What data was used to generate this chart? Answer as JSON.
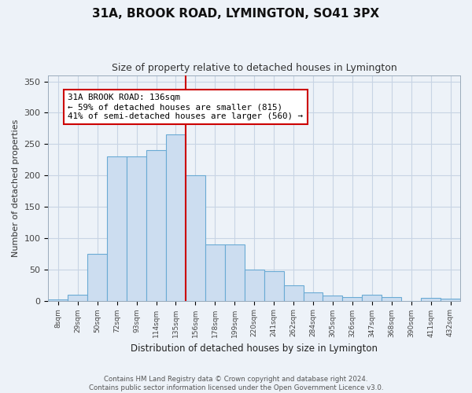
{
  "title": "31A, BROOK ROAD, LYMINGTON, SO41 3PX",
  "subtitle": "Size of property relative to detached houses in Lymington",
  "xlabel": "Distribution of detached houses by size in Lymington",
  "ylabel": "Number of detached properties",
  "bin_labels": [
    "8sqm",
    "29sqm",
    "50sqm",
    "72sqm",
    "93sqm",
    "114sqm",
    "135sqm",
    "156sqm",
    "178sqm",
    "199sqm",
    "220sqm",
    "241sqm",
    "262sqm",
    "284sqm",
    "305sqm",
    "326sqm",
    "347sqm",
    "368sqm",
    "390sqm",
    "411sqm",
    "432sqm"
  ],
  "bar_values": [
    2,
    10,
    75,
    230,
    230,
    240,
    265,
    200,
    90,
    90,
    50,
    47,
    25,
    13,
    8,
    6,
    10,
    6,
    0,
    5,
    3
  ],
  "property_line_x": 6.5,
  "annotation_text": "31A BROOK ROAD: 136sqm\n← 59% of detached houses are smaller (815)\n41% of semi-detached houses are larger (560) →",
  "bar_color": "#ccddf0",
  "bar_edge_color": "#6aaad4",
  "line_color": "#cc0000",
  "annotation_box_edge": "#cc0000",
  "annotation_box_face": "#ffffff",
  "grid_color": "#c8d4e4",
  "background_color": "#edf2f8",
  "plot_bg_color": "#edf2f8",
  "footer_text": "Contains HM Land Registry data © Crown copyright and database right 2024.\nContains public sector information licensed under the Open Government Licence v3.0.",
  "ylim": [
    0,
    360
  ],
  "yticks": [
    0,
    50,
    100,
    150,
    200,
    250,
    300,
    350
  ]
}
